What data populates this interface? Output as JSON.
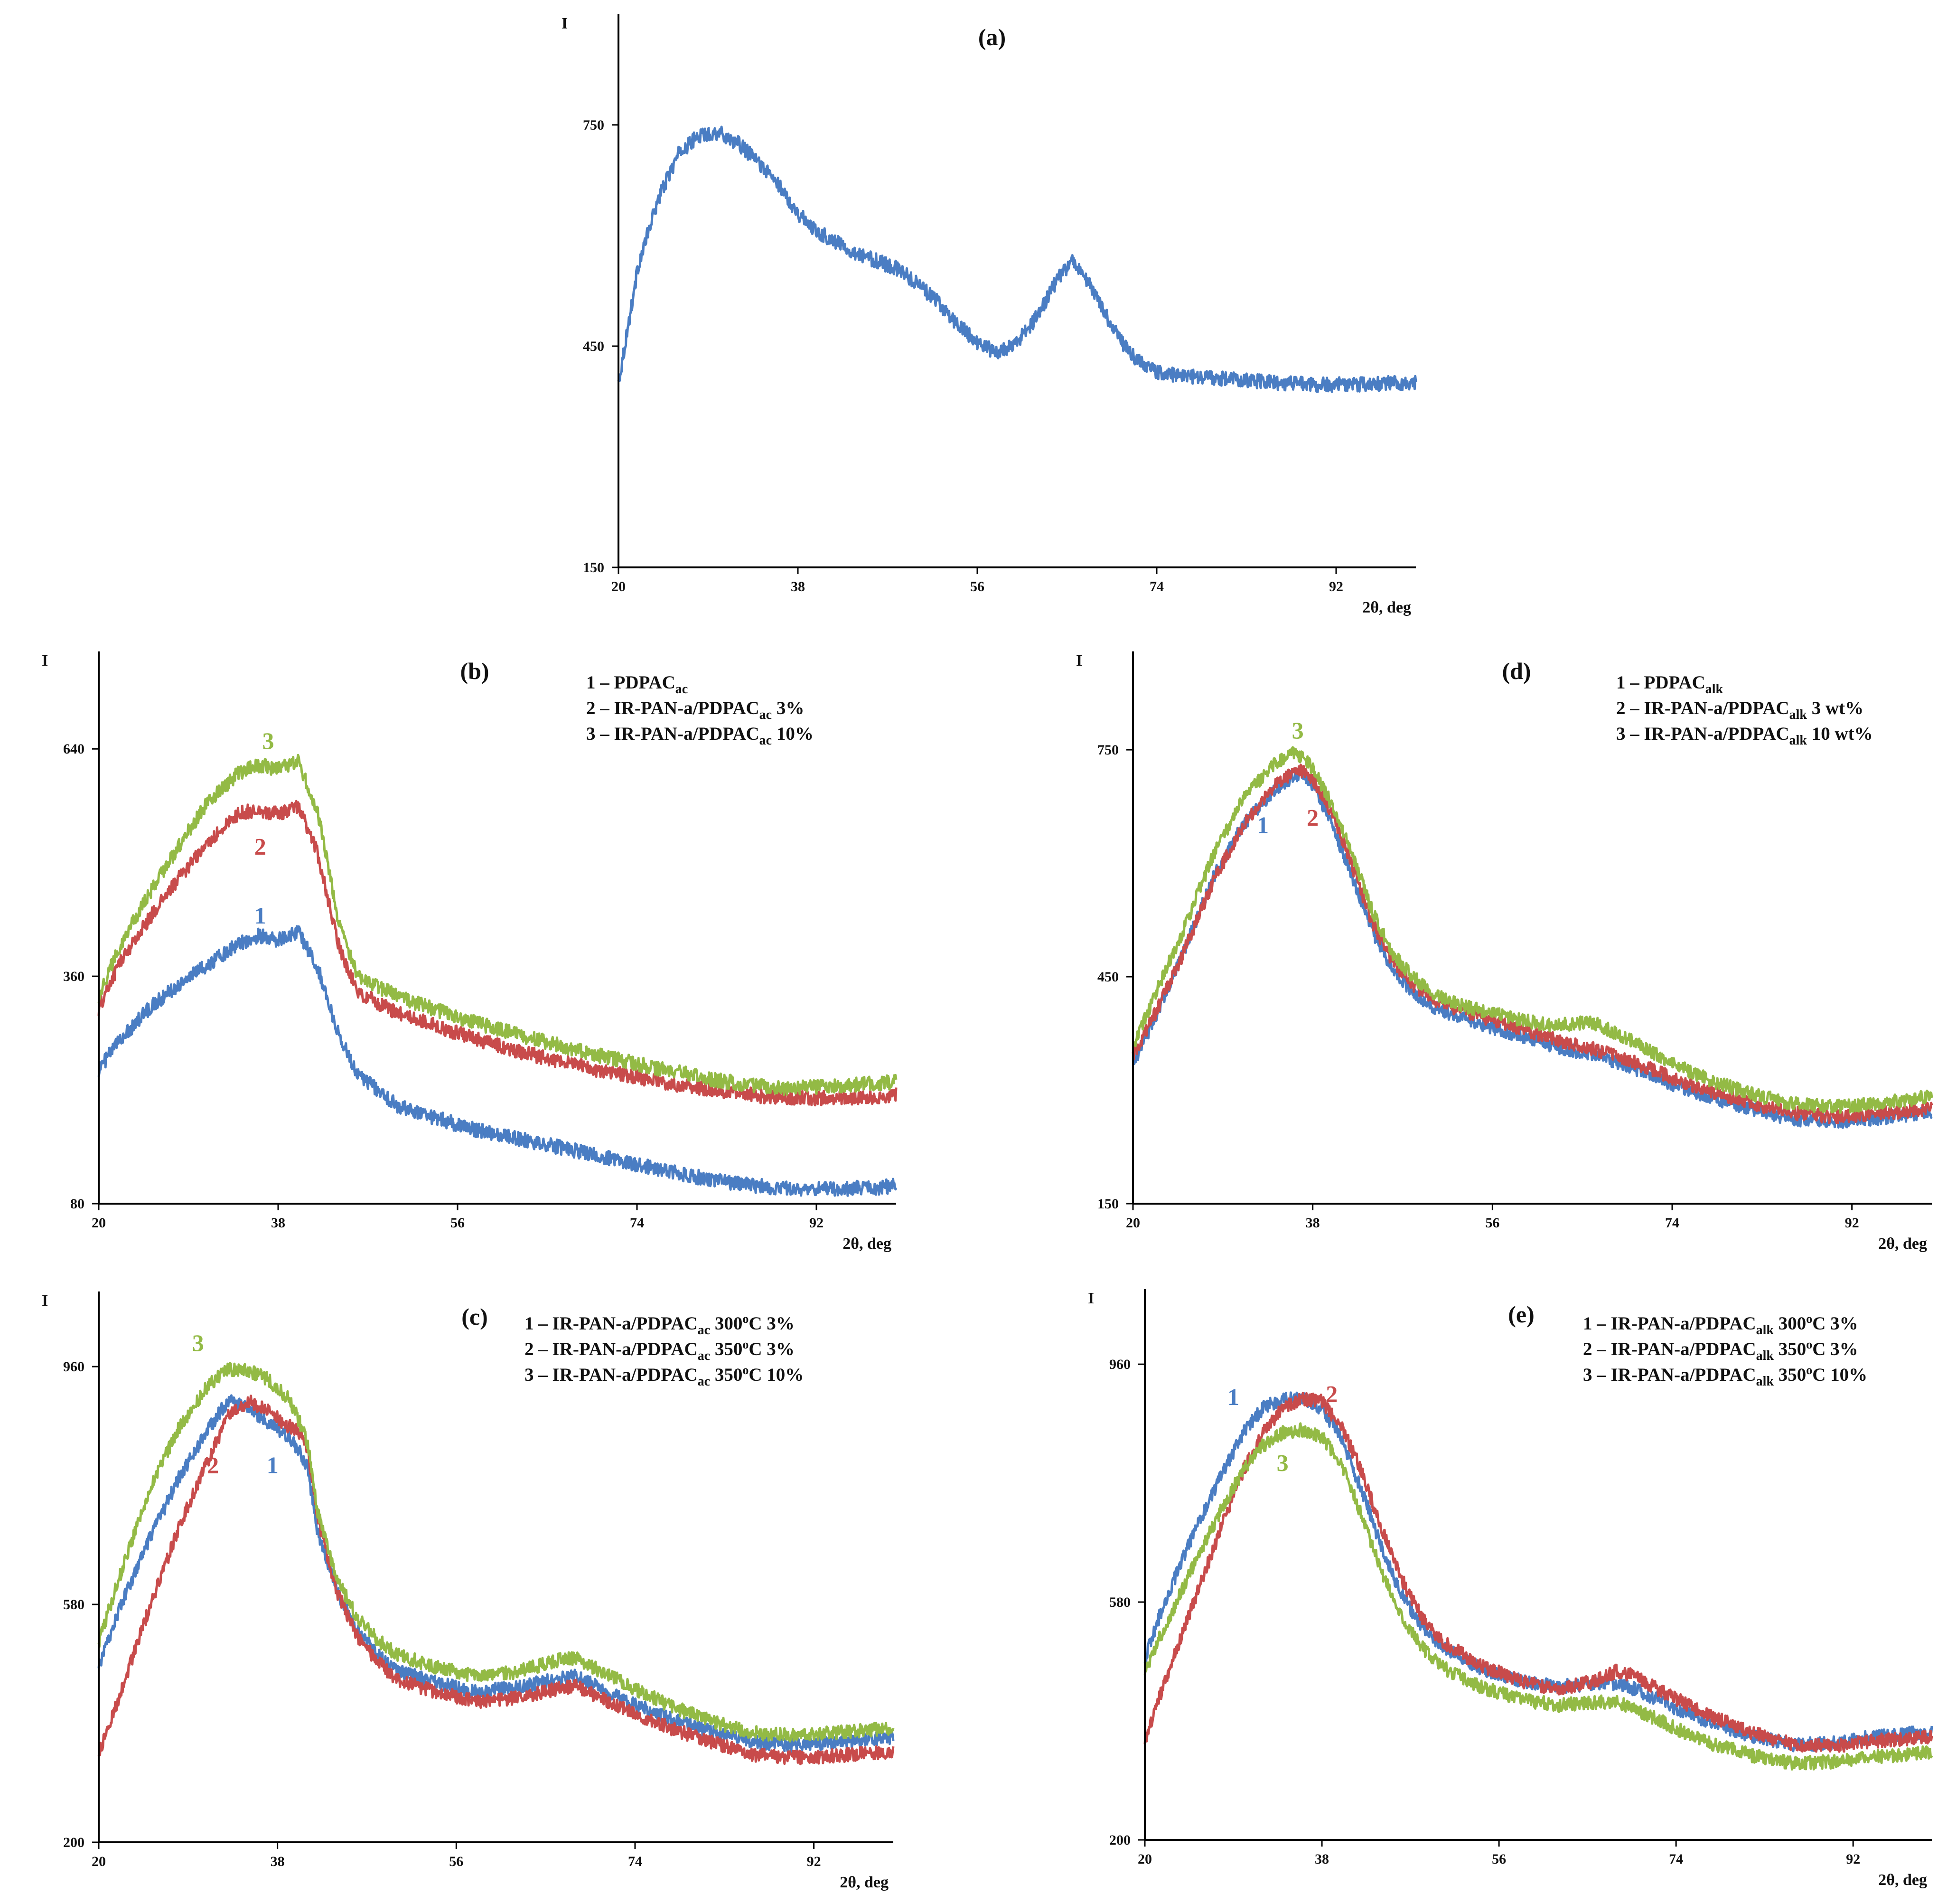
{
  "colors": {
    "series1": "#4a7dc3",
    "series2": "#c84b4b",
    "series3": "#93ba45"
  },
  "chart_data": [
    {
      "id": "a",
      "type": "line",
      "title": "(a)",
      "ylabel": "I",
      "xlabel": "2θ, deg",
      "xlim": [
        20,
        100
      ],
      "ylim": [
        150,
        900
      ],
      "xticks": [
        "20",
        "38",
        "56",
        "74",
        "92"
      ],
      "yticks": [
        "150",
        "450",
        "750"
      ],
      "legend": [],
      "series": [
        {
          "name": "a",
          "color": "#4a7dc3",
          "noise": 10,
          "x": [
            20,
            22,
            24,
            26,
            28,
            30,
            32,
            34,
            36,
            38,
            40,
            42,
            44,
            46,
            48,
            50,
            52,
            54,
            56,
            58,
            60,
            62,
            64,
            65.5,
            67,
            69,
            71,
            73,
            75,
            78,
            82,
            86,
            90,
            94,
            98,
            100
          ],
          "y": [
            400,
            560,
            650,
            710,
            735,
            740,
            725,
            700,
            670,
            630,
            605,
            590,
            575,
            565,
            555,
            535,
            510,
            480,
            455,
            440,
            455,
            490,
            540,
            565,
            540,
            490,
            445,
            420,
            412,
            408,
            405,
            400,
            398,
            398,
            400,
            402
          ]
        }
      ],
      "curve_labels": []
    },
    {
      "id": "b",
      "type": "line",
      "title": "(b)",
      "ylabel": "I",
      "xlabel": "2θ, deg",
      "xlim": [
        20,
        100
      ],
      "ylim": [
        80,
        760
      ],
      "xticks": [
        "20",
        "38",
        "56",
        "74",
        "92"
      ],
      "yticks": [
        "80",
        "360",
        "640"
      ],
      "legend": [
        {
          "prefix": "1 – PDPAC",
          "sub": "ac",
          "suffix": ""
        },
        {
          "prefix": "2 – IR-PAN-a/PDPAC",
          "sub": "ac",
          "suffix": " 3%"
        },
        {
          "prefix": "3 – IR-PAN-a/PDPAC",
          "sub": "ac",
          "suffix": " 10%"
        }
      ],
      "series": [
        {
          "name": "1",
          "color": "#4a7dc3",
          "noise": 9,
          "x": [
            20,
            22,
            25,
            28,
            31,
            34,
            36,
            38,
            40,
            42,
            44,
            46,
            50,
            54,
            58,
            62,
            66,
            70,
            74,
            78,
            82,
            86,
            90,
            94,
            98,
            100
          ],
          "y": [
            245,
            280,
            320,
            350,
            375,
            400,
            410,
            405,
            415,
            370,
            290,
            240,
            200,
            185,
            170,
            160,
            150,
            140,
            128,
            118,
            108,
            102,
            98,
            98,
            100,
            102
          ]
        },
        {
          "name": "2",
          "color": "#c84b4b",
          "noise": 9,
          "x": [
            20,
            22,
            25,
            28,
            31,
            34,
            36,
            38,
            40,
            42,
            44,
            46,
            50,
            54,
            58,
            62,
            66,
            70,
            74,
            78,
            82,
            86,
            90,
            94,
            98,
            100
          ],
          "y": [
            320,
            375,
            430,
            480,
            525,
            560,
            565,
            560,
            570,
            510,
            400,
            340,
            315,
            298,
            282,
            268,
            256,
            245,
            236,
            227,
            220,
            213,
            210,
            210,
            212,
            214
          ]
        },
        {
          "name": "3",
          "color": "#93ba45",
          "noise": 9,
          "x": [
            20,
            22,
            25,
            28,
            31,
            34,
            36,
            38,
            40,
            42,
            44,
            46,
            50,
            54,
            58,
            62,
            66,
            70,
            74,
            78,
            82,
            86,
            90,
            94,
            98,
            100
          ],
          "y": [
            335,
            395,
            460,
            520,
            575,
            610,
            620,
            615,
            625,
            560,
            430,
            360,
            335,
            318,
            302,
            288,
            276,
            263,
            252,
            242,
            232,
            225,
            222,
            225,
            228,
            230
          ]
        }
      ],
      "curve_labels": [
        {
          "text": "1",
          "x": 36.2,
          "y": 425,
          "color": "#4a7dc3"
        },
        {
          "text": "2",
          "x": 36.2,
          "y": 510,
          "color": "#c84b4b"
        },
        {
          "text": "3",
          "x": 37,
          "y": 640,
          "color": "#93ba45"
        }
      ]
    },
    {
      "id": "c",
      "type": "line",
      "title": "(c)",
      "ylabel": "I",
      "xlabel": "2θ, deg",
      "xlim": [
        20,
        100
      ],
      "ylim": [
        200,
        1080
      ],
      "xticks": [
        "20",
        "38",
        "56",
        "74",
        "92"
      ],
      "yticks": [
        "200",
        "580",
        "960"
      ],
      "legend": [
        {
          "prefix": "1 – IR-PAN-a/PDPAC",
          "sub": "ac",
          "suffix": " 300",
          "sup": "o",
          "tail": "C 3%"
        },
        {
          "prefix": "2 – IR-PAN-a/PDPAC",
          "sub": "ac",
          "suffix": " 350",
          "sup": "o",
          "tail": "C 3%"
        },
        {
          "prefix": "3 – IR-PAN-a/PDPAC",
          "sub": "ac",
          "suffix": " 350",
          "sup": "o",
          "tail": "C 10%"
        }
      ],
      "series": [
        {
          "name": "1",
          "color": "#4a7dc3",
          "noise": 11,
          "x": [
            20,
            22,
            25,
            28,
            31,
            33,
            35,
            37,
            39,
            40,
            41,
            42,
            44,
            46,
            48,
            50,
            54,
            58,
            62,
            66,
            68,
            70,
            74,
            78,
            82,
            86,
            90,
            94,
            98,
            100
          ],
          "y": [
            480,
            570,
            680,
            780,
            860,
            905,
            895,
            870,
            850,
            830,
            800,
            700,
            600,
            540,
            500,
            475,
            455,
            440,
            448,
            460,
            465,
            450,
            420,
            395,
            375,
            360,
            355,
            360,
            365,
            368
          ]
        },
        {
          "name": "2",
          "color": "#c84b4b",
          "noise": 11,
          "x": [
            20,
            22,
            25,
            28,
            31,
            33,
            35,
            37,
            39,
            40,
            41,
            42,
            44,
            46,
            48,
            50,
            54,
            58,
            62,
            66,
            68,
            70,
            74,
            78,
            82,
            86,
            90,
            94,
            98,
            100
          ],
          "y": [
            340,
            430,
            570,
            700,
            810,
            880,
            905,
            890,
            865,
            860,
            830,
            720,
            600,
            530,
            490,
            460,
            440,
            425,
            430,
            445,
            450,
            435,
            405,
            380,
            358,
            340,
            335,
            338,
            343,
            345
          ]
        },
        {
          "name": "3",
          "color": "#93ba45",
          "noise": 11,
          "x": [
            20,
            22,
            25,
            28,
            31,
            33,
            35,
            37,
            39,
            40,
            41,
            42,
            44,
            46,
            48,
            50,
            54,
            58,
            62,
            66,
            68,
            70,
            74,
            78,
            82,
            86,
            90,
            94,
            98,
            100
          ],
          "y": [
            520,
            620,
            760,
            860,
            930,
            955,
            955,
            940,
            910,
            880,
            840,
            730,
            620,
            560,
            525,
            500,
            480,
            465,
            472,
            490,
            495,
            478,
            445,
            415,
            392,
            375,
            370,
            375,
            380,
            382
          ]
        }
      ],
      "curve_labels": [
        {
          "text": "1",
          "x": 37.5,
          "y": 790,
          "color": "#4a7dc3"
        },
        {
          "text": "2",
          "x": 31.5,
          "y": 790,
          "color": "#c84b4b"
        },
        {
          "text": "3",
          "x": 30,
          "y": 985,
          "color": "#93ba45"
        }
      ]
    },
    {
      "id": "d",
      "type": "line",
      "title": "(d)",
      "ylabel": "I",
      "xlabel": "2θ, deg",
      "xlim": [
        20,
        100
      ],
      "ylim": [
        150,
        880
      ],
      "xticks": [
        "20",
        "38",
        "56",
        "74",
        "92"
      ],
      "yticks": [
        "150",
        "450",
        "750"
      ],
      "legend": [
        {
          "prefix": "1 – PDPAC",
          "sub": "alk",
          "suffix": ""
        },
        {
          "prefix": "2 – IR-PAN-a/PDPAC",
          "sub": "alk",
          "suffix": " 3 wt%"
        },
        {
          "prefix": "3 – IR-PAN-a/PDPAC",
          "sub": "alk",
          "suffix": " 10 wt%"
        }
      ],
      "series": [
        {
          "name": "1",
          "color": "#4a7dc3",
          "noise": 9,
          "x": [
            20,
            22,
            25,
            28,
            31,
            34,
            36,
            37,
            38,
            40,
            42,
            44,
            46,
            48,
            50,
            54,
            58,
            62,
            64,
            66,
            70,
            74,
            78,
            82,
            86,
            90,
            94,
            98,
            100
          ],
          "y": [
            335,
            390,
            480,
            580,
            650,
            695,
            715,
            718,
            705,
            650,
            580,
            510,
            460,
            430,
            410,
            390,
            375,
            358,
            352,
            348,
            330,
            308,
            290,
            275,
            262,
            258,
            262,
            268,
            272
          ]
        },
        {
          "name": "2",
          "color": "#c84b4b",
          "noise": 9,
          "x": [
            20,
            22,
            25,
            28,
            31,
            34,
            36,
            37,
            38,
            40,
            42,
            44,
            46,
            48,
            50,
            54,
            58,
            62,
            64,
            66,
            70,
            74,
            78,
            82,
            86,
            90,
            94,
            98,
            100
          ],
          "y": [
            345,
            395,
            480,
            575,
            650,
            700,
            720,
            722,
            712,
            665,
            595,
            520,
            470,
            440,
            420,
            400,
            385,
            368,
            362,
            355,
            338,
            316,
            298,
            282,
            270,
            265,
            268,
            273,
            276
          ]
        },
        {
          "name": "3",
          "color": "#93ba45",
          "noise": 9,
          "x": [
            20,
            22,
            25,
            28,
            31,
            34,
            36,
            37,
            38,
            40,
            42,
            44,
            46,
            48,
            50,
            54,
            58,
            62,
            64,
            66,
            70,
            74,
            78,
            82,
            86,
            90,
            94,
            98,
            100
          ],
          "y": [
            355,
            420,
            510,
            610,
            685,
            730,
            745,
            740,
            725,
            675,
            610,
            535,
            480,
            450,
            428,
            408,
            395,
            385,
            388,
            390,
            365,
            335,
            312,
            295,
            282,
            278,
            282,
            288,
            292
          ]
        }
      ],
      "curve_labels": [
        {
          "text": "1",
          "x": 33,
          "y": 640,
          "color": "#4a7dc3"
        },
        {
          "text": "2",
          "x": 38,
          "y": 650,
          "color": "#c84b4b"
        },
        {
          "text": "3",
          "x": 36.5,
          "y": 765,
          "color": "#93ba45"
        }
      ]
    },
    {
      "id": "e",
      "type": "line",
      "title": "(e)",
      "ylabel": "I",
      "xlabel": "2θ, deg",
      "xlim": [
        20,
        100
      ],
      "ylim": [
        200,
        1080
      ],
      "xticks": [
        "20",
        "38",
        "56",
        "74",
        "92"
      ],
      "yticks": [
        "200",
        "580",
        "960"
      ],
      "legend": [
        {
          "prefix": "1 – IR-PAN-a/PDPAC",
          "sub": "alk",
          "suffix": " 300",
          "sup": "o",
          "tail": "C 3%"
        },
        {
          "prefix": "2 – IR-PAN-a/PDPAC",
          "sub": "alk",
          "suffix": " 350",
          "sup": "o",
          "tail": "C 3%"
        },
        {
          "prefix": "3 – IR-PAN-a/PDPAC",
          "sub": "alk",
          "suffix": " 350",
          "sup": "o",
          "tail": "C 10%"
        }
      ],
      "series": [
        {
          "name": "1",
          "color": "#4a7dc3",
          "noise": 11,
          "x": [
            20,
            22,
            25,
            28,
            30,
            32,
            34,
            36,
            38,
            40,
            42,
            44,
            46,
            48,
            50,
            54,
            58,
            62,
            66,
            68,
            70,
            74,
            78,
            82,
            86,
            90,
            94,
            98,
            100
          ],
          "y": [
            490,
            580,
            690,
            790,
            850,
            890,
            905,
            905,
            890,
            840,
            760,
            670,
            595,
            545,
            510,
            475,
            455,
            445,
            450,
            450,
            440,
            410,
            385,
            365,
            352,
            355,
            365,
            370,
            372
          ]
        },
        {
          "name": "2",
          "color": "#c84b4b",
          "noise": 11,
          "x": [
            20,
            22,
            25,
            28,
            30,
            32,
            34,
            36,
            38,
            40,
            42,
            44,
            46,
            48,
            50,
            54,
            58,
            62,
            66,
            68,
            70,
            74,
            78,
            82,
            86,
            90,
            94,
            98,
            100
          ],
          "y": [
            360,
            450,
            580,
            710,
            790,
            850,
            890,
            905,
            900,
            860,
            790,
            700,
            620,
            560,
            520,
            480,
            455,
            440,
            455,
            470,
            460,
            425,
            395,
            370,
            352,
            350,
            358,
            362,
            364
          ]
        },
        {
          "name": "3",
          "color": "#93ba45",
          "noise": 11,
          "x": [
            20,
            22,
            25,
            28,
            30,
            32,
            34,
            36,
            38,
            40,
            42,
            44,
            46,
            48,
            50,
            54,
            58,
            62,
            66,
            68,
            70,
            74,
            78,
            82,
            86,
            90,
            94,
            98,
            100
          ],
          "y": [
            470,
            540,
            640,
            735,
            790,
            830,
            850,
            855,
            845,
            800,
            720,
            630,
            560,
            510,
            478,
            445,
            425,
            415,
            420,
            420,
            408,
            378,
            352,
            334,
            322,
            325,
            332,
            338,
            340
          ]
        }
      ],
      "curve_labels": [
        {
          "text": "1",
          "x": 29,
          "y": 895,
          "color": "#4a7dc3"
        },
        {
          "text": "2",
          "x": 39,
          "y": 900,
          "color": "#c84b4b"
        },
        {
          "text": "3",
          "x": 34,
          "y": 790,
          "color": "#93ba45"
        }
      ]
    }
  ]
}
